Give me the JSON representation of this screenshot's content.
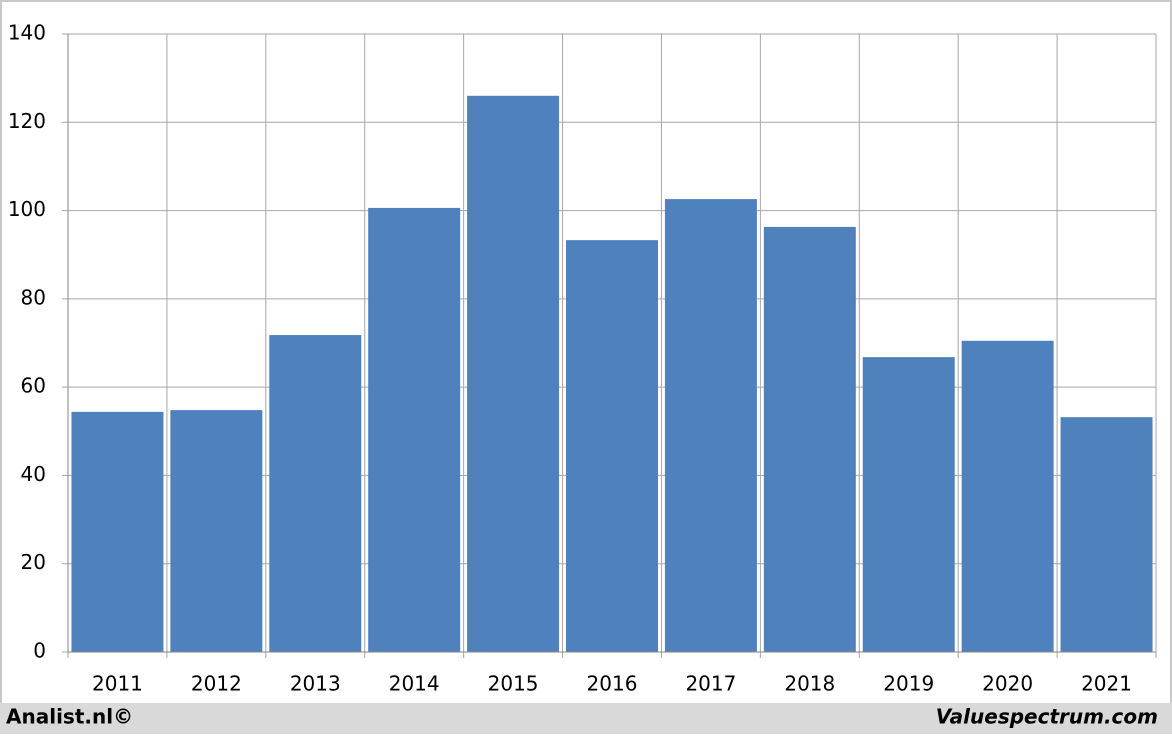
{
  "chart_data": {
    "type": "bar",
    "categories": [
      "2011",
      "2012",
      "2013",
      "2014",
      "2015",
      "2016",
      "2017",
      "2018",
      "2019",
      "2020",
      "2021"
    ],
    "values": [
      54.4,
      54.8,
      71.8,
      100.6,
      126,
      93.3,
      102.6,
      96.3,
      66.8,
      70.5,
      53.2
    ],
    "color": "#4f81bd",
    "ylim": [
      0,
      140
    ],
    "yticks": [
      0,
      20,
      40,
      60,
      80,
      100,
      120,
      140
    ],
    "grid": true,
    "footer_left": "Analist.nl©",
    "footer_right": "Valuespectrum.com"
  }
}
